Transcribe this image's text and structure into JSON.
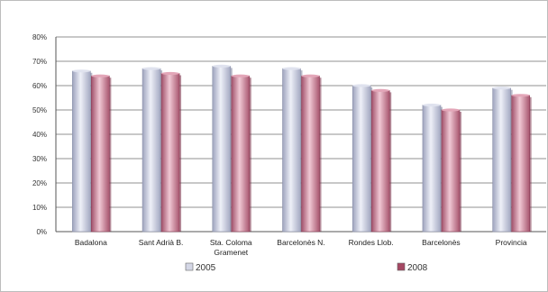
{
  "chart_data": {
    "type": "bar",
    "categories": [
      "Badalona",
      "Sant Adrià B.",
      "Sta. Coloma\nGramenet",
      "Barcelonès N.",
      "Rondes Llob.",
      "Barcelonès",
      "Provincia"
    ],
    "series": [
      {
        "name": "2005",
        "values": [
          66,
          67,
          68,
          67,
          60,
          52,
          59
        ],
        "color": "#c9cdde"
      },
      {
        "name": "2008",
        "values": [
          64,
          65,
          64,
          64,
          58,
          50,
          56
        ],
        "color": "#c97f96"
      }
    ],
    "ylim": [
      0,
      80
    ],
    "yticks": [
      "0%",
      "10%",
      "20%",
      "30%",
      "40%",
      "50%",
      "60%",
      "70%",
      "80%"
    ],
    "title": "",
    "xlabel": "",
    "ylabel": "",
    "grid": true,
    "legend": "bottom"
  }
}
